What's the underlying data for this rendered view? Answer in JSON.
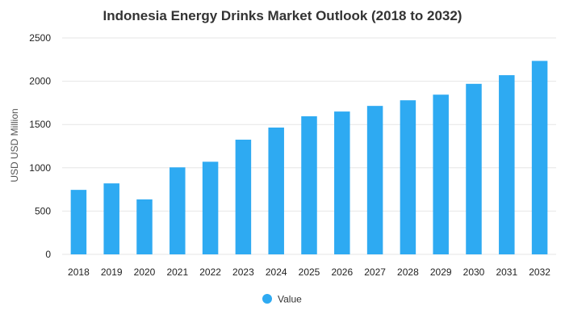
{
  "chart_data": {
    "type": "bar",
    "title": "Indonesia Energy Drinks Market Outlook (2018 to 2032)",
    "xlabel": "",
    "ylabel": "USD USD Million",
    "categories": [
      "2018",
      "2019",
      "2020",
      "2021",
      "2022",
      "2023",
      "2024",
      "2025",
      "2026",
      "2027",
      "2028",
      "2029",
      "2030",
      "2031",
      "2032"
    ],
    "series": [
      {
        "name": "Value",
        "values": [
          745,
          820,
          635,
          1005,
          1070,
          1325,
          1465,
          1595,
          1650,
          1715,
          1780,
          1845,
          1970,
          2070,
          2235
        ]
      }
    ],
    "ylim": [
      0,
      2500
    ],
    "yticks": [
      0,
      500,
      1000,
      1500,
      2000,
      2500
    ],
    "grid": true,
    "legend_position": "bottom",
    "colors": {
      "bar": "#2eaaf2"
    }
  }
}
